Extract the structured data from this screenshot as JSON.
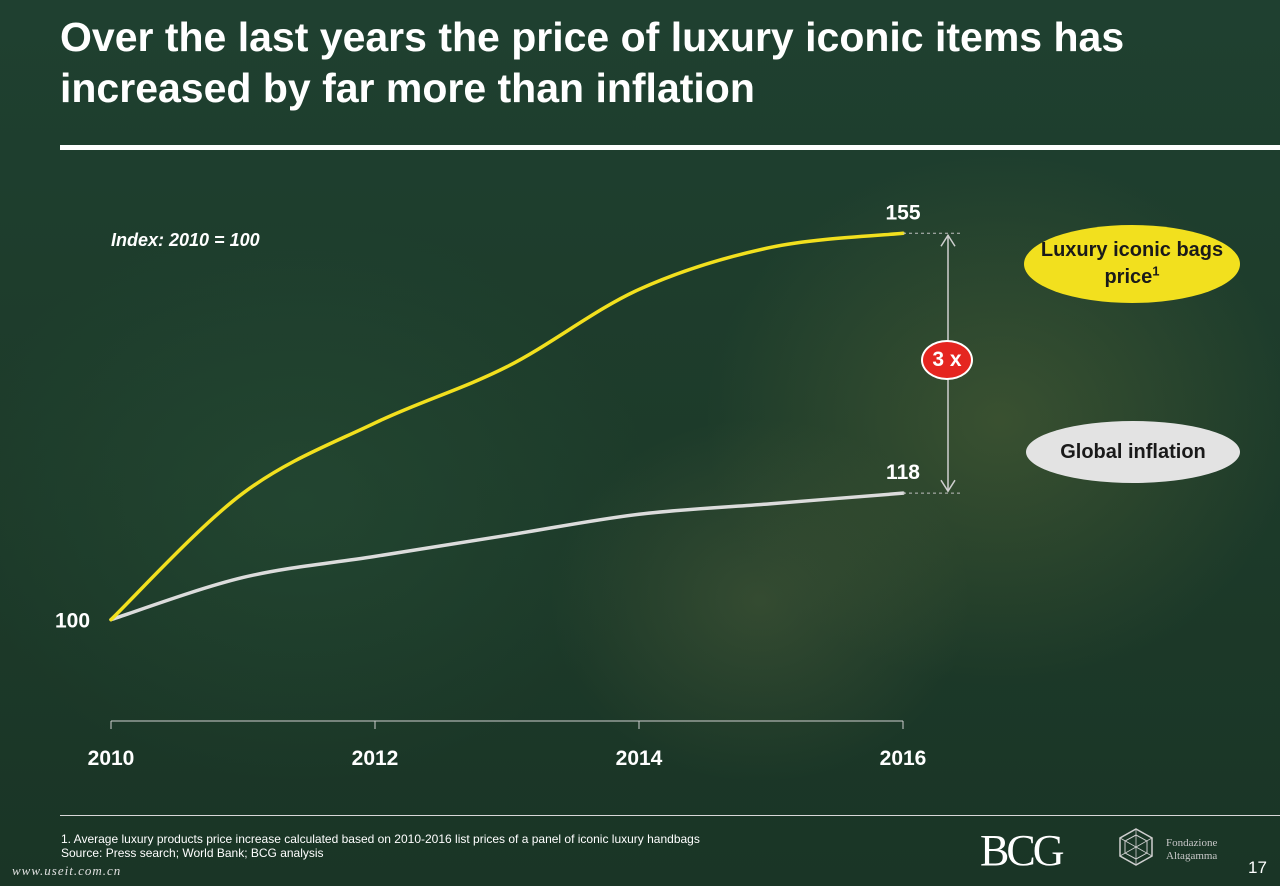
{
  "slide": {
    "title": "Over the last years the price of luxury iconic items has increased by far more than inflation",
    "page_number": "17",
    "watermark": "www.useit.com.cn"
  },
  "chart_data": {
    "type": "line",
    "subtitle": "Index: 2010 = 100",
    "x": [
      2010,
      2011,
      2012,
      2013,
      2014,
      2015,
      2016
    ],
    "x_tick_labels": [
      "2010",
      "2012",
      "2014",
      "2016"
    ],
    "xlim": [
      2010,
      2016
    ],
    "ylim": [
      85,
      165
    ],
    "grid": false,
    "series": [
      {
        "name": "Luxury iconic bags price",
        "legend_label": "Luxury iconic bags price",
        "footnote_marker": "1",
        "color": "#f2e01e",
        "values": [
          100,
          118,
          128,
          136,
          147,
          153,
          155
        ],
        "end_label": "155"
      },
      {
        "name": "Global inflation",
        "legend_label": "Global inflation",
        "color": "#dcdcdc",
        "values": [
          100,
          106,
          109,
          112,
          115,
          116.5,
          118
        ],
        "end_label": "118"
      }
    ],
    "start_label": "100",
    "annotation": "3 x",
    "annotation_color": "#e52620"
  },
  "footer": {
    "note": "1. Average luxury products price increase calculated based on 2010-2016 list prices of a panel of iconic luxury handbags",
    "source": "Source: Press search; World Bank; BCG analysis",
    "logo_bcg": "BCG",
    "logo_fondazione_line1": "Fondazione",
    "logo_fondazione_line2": "Altagamma"
  }
}
